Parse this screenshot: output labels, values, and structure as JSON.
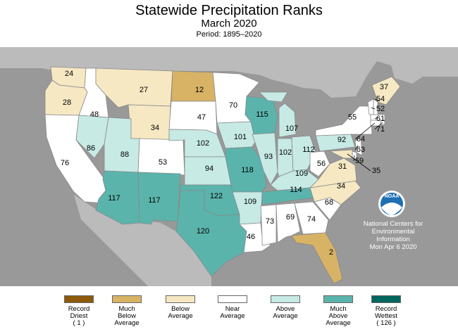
{
  "header": {
    "title": "Statewide Precipitation Ranks",
    "subtitle": "March 2020",
    "period": "Period: 1895–2020"
  },
  "colors": {
    "record_driest": "#8c5a0a",
    "much_below": "#d8b365",
    "below": "#f6e8c3",
    "near": "#ffffff",
    "above": "#c7eae5",
    "much_above": "#5ab4ac",
    "record_wettest": "#01665e",
    "background": "#999999"
  },
  "states": [
    {
      "abbr": "WA",
      "rank": "24",
      "cls": "below"
    },
    {
      "abbr": "OR",
      "rank": "28",
      "cls": "below"
    },
    {
      "abbr": "CA",
      "rank": "76",
      "cls": "near"
    },
    {
      "abbr": "ID",
      "rank": "48",
      "cls": "near"
    },
    {
      "abbr": "NV",
      "rank": "86",
      "cls": "above"
    },
    {
      "abbr": "MT",
      "rank": "27",
      "cls": "below"
    },
    {
      "abbr": "WY",
      "rank": "34",
      "cls": "below"
    },
    {
      "abbr": "UT",
      "rank": "88",
      "cls": "above"
    },
    {
      "abbr": "AZ",
      "rank": "117",
      "cls": "much_above"
    },
    {
      "abbr": "CO",
      "rank": "53",
      "cls": "near"
    },
    {
      "abbr": "NM",
      "rank": "117",
      "cls": "much_above"
    },
    {
      "abbr": "ND",
      "rank": "12",
      "cls": "much_below"
    },
    {
      "abbr": "SD",
      "rank": "47",
      "cls": "near"
    },
    {
      "abbr": "NE",
      "rank": "102",
      "cls": "above"
    },
    {
      "abbr": "KS",
      "rank": "94",
      "cls": "above"
    },
    {
      "abbr": "OK",
      "rank": "122",
      "cls": "much_above"
    },
    {
      "abbr": "TX",
      "rank": "120",
      "cls": "much_above"
    },
    {
      "abbr": "MN",
      "rank": "70",
      "cls": "near"
    },
    {
      "abbr": "IA",
      "rank": "101",
      "cls": "above"
    },
    {
      "abbr": "MO",
      "rank": "118",
      "cls": "much_above"
    },
    {
      "abbr": "AR",
      "rank": "109",
      "cls": "above"
    },
    {
      "abbr": "LA",
      "rank": "46",
      "cls": "near"
    },
    {
      "abbr": "WI",
      "rank": "115",
      "cls": "much_above"
    },
    {
      "abbr": "IL",
      "rank": "93",
      "cls": "above"
    },
    {
      "abbr": "MS",
      "rank": "73",
      "cls": "near"
    },
    {
      "abbr": "MI",
      "rank": "107",
      "cls": "above"
    },
    {
      "abbr": "IN",
      "rank": "102",
      "cls": "above"
    },
    {
      "abbr": "KY",
      "rank": "109",
      "cls": "above"
    },
    {
      "abbr": "TN",
      "rank": "114",
      "cls": "much_above"
    },
    {
      "abbr": "AL",
      "rank": "69",
      "cls": "near"
    },
    {
      "abbr": "OH",
      "rank": "112",
      "cls": "above"
    },
    {
      "abbr": "WV",
      "rank": "56",
      "cls": "near"
    },
    {
      "abbr": "GA",
      "rank": "74",
      "cls": "near"
    },
    {
      "abbr": "FL",
      "rank": "2",
      "cls": "much_below"
    },
    {
      "abbr": "SC",
      "rank": "68",
      "cls": "near"
    },
    {
      "abbr": "NC",
      "rank": "34",
      "cls": "below"
    },
    {
      "abbr": "VA",
      "rank": "31",
      "cls": "below"
    },
    {
      "abbr": "PA",
      "rank": "92",
      "cls": "above"
    },
    {
      "abbr": "NY",
      "rank": "55",
      "cls": "near"
    },
    {
      "abbr": "ME",
      "rank": "37",
      "cls": "below"
    },
    {
      "abbr": "NH",
      "rank": "54",
      "cls": "near"
    },
    {
      "abbr": "VT",
      "rank": "52",
      "cls": "near"
    },
    {
      "abbr": "MA",
      "rank": "61",
      "cls": "near"
    },
    {
      "abbr": "RI",
      "rank": "71",
      "cls": "near"
    },
    {
      "abbr": "CT",
      "rank": "64",
      "cls": "near"
    },
    {
      "abbr": "NJ",
      "rank": "63",
      "cls": "near"
    },
    {
      "abbr": "DE",
      "rank": "59",
      "cls": "near"
    },
    {
      "abbr": "MD",
      "rank": "35",
      "cls": "below"
    }
  ],
  "noaa": {
    "logo_text": "NOAA",
    "credit_line1": "National Centers for",
    "credit_line2": "Environmental",
    "credit_line3": "Information",
    "credit_date": "Mon Apr  6 2020"
  },
  "legend": [
    {
      "key": "record_driest",
      "lines": [
        "Record",
        "Driest",
        "( 1 )"
      ]
    },
    {
      "key": "much_below",
      "lines": [
        "Much",
        "Below",
        "Average"
      ]
    },
    {
      "key": "below",
      "lines": [
        "Below",
        "Average"
      ]
    },
    {
      "key": "near",
      "lines": [
        "Near",
        "Average"
      ]
    },
    {
      "key": "above",
      "lines": [
        "Above",
        "Average"
      ]
    },
    {
      "key": "much_above",
      "lines": [
        "Much",
        "Above",
        "Average"
      ]
    },
    {
      "key": "record_wettest",
      "lines": [
        "Record",
        "Wettest",
        "( 126 )"
      ]
    }
  ]
}
